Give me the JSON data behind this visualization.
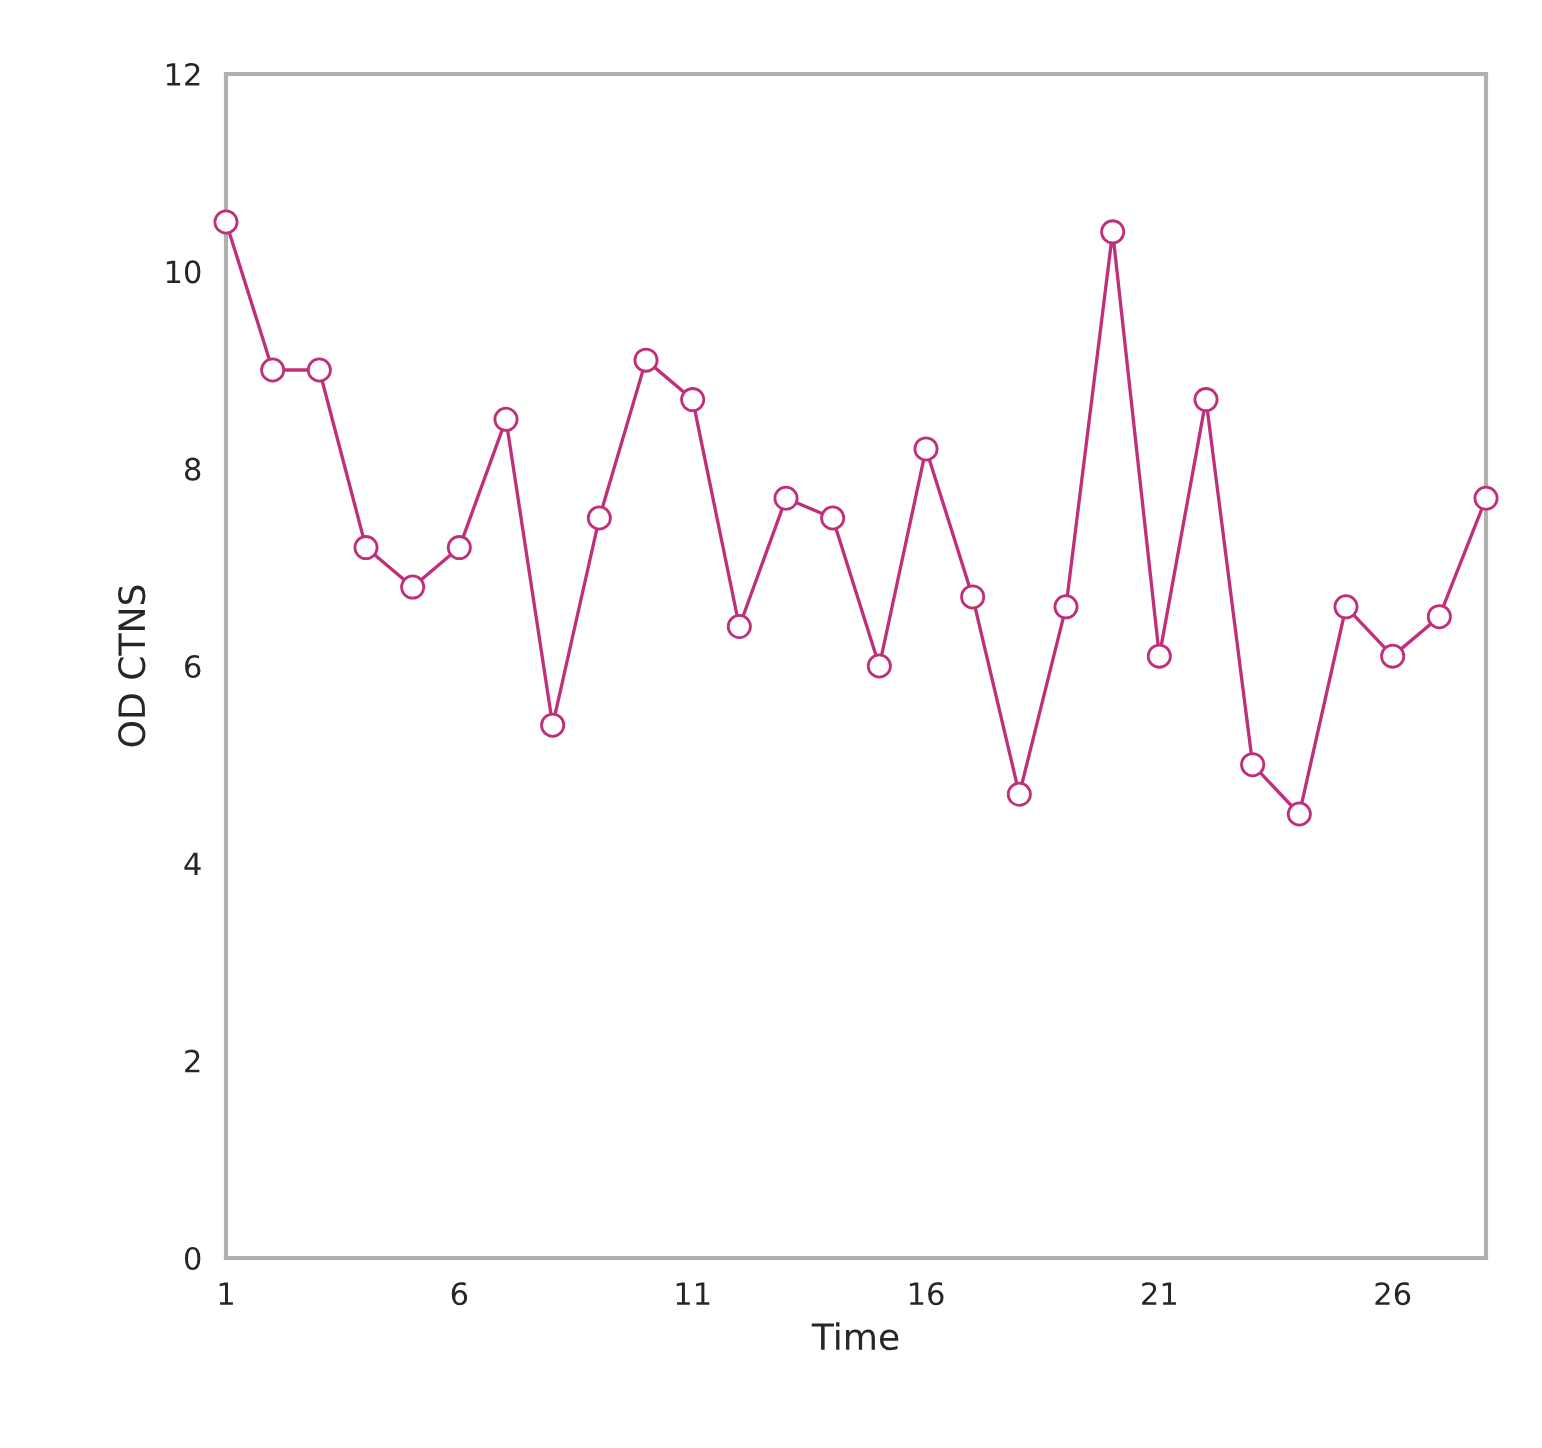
{
  "chart_data": {
    "type": "line",
    "xlabel": "Time",
    "ylabel": "OD CTNS",
    "x": [
      1,
      2,
      3,
      4,
      5,
      6,
      7,
      8,
      9,
      10,
      11,
      12,
      13,
      14,
      15,
      16,
      17,
      18,
      19,
      20,
      21,
      22,
      23,
      24,
      25,
      26,
      27,
      28
    ],
    "series": [
      {
        "color": "#c0307a",
        "values": [
          10.5,
          9.0,
          9.0,
          7.2,
          6.8,
          7.2,
          8.5,
          5.4,
          7.5,
          9.1,
          8.7,
          6.4,
          7.7,
          7.5,
          6.0,
          8.2,
          6.7,
          4.7,
          6.6,
          10.4,
          6.1,
          8.7,
          5.0,
          4.5,
          6.6,
          6.1,
          6.5,
          7.7
        ]
      }
    ],
    "xlim": [
      1,
      28
    ],
    "xticks": [
      1,
      6,
      11,
      16,
      21,
      26
    ],
    "ylim": [
      0,
      12
    ],
    "yticks": [
      0,
      2,
      4,
      6,
      8,
      10,
      12
    ],
    "marker": "circle",
    "line_style": "solid",
    "grid": false,
    "legend": false
  }
}
